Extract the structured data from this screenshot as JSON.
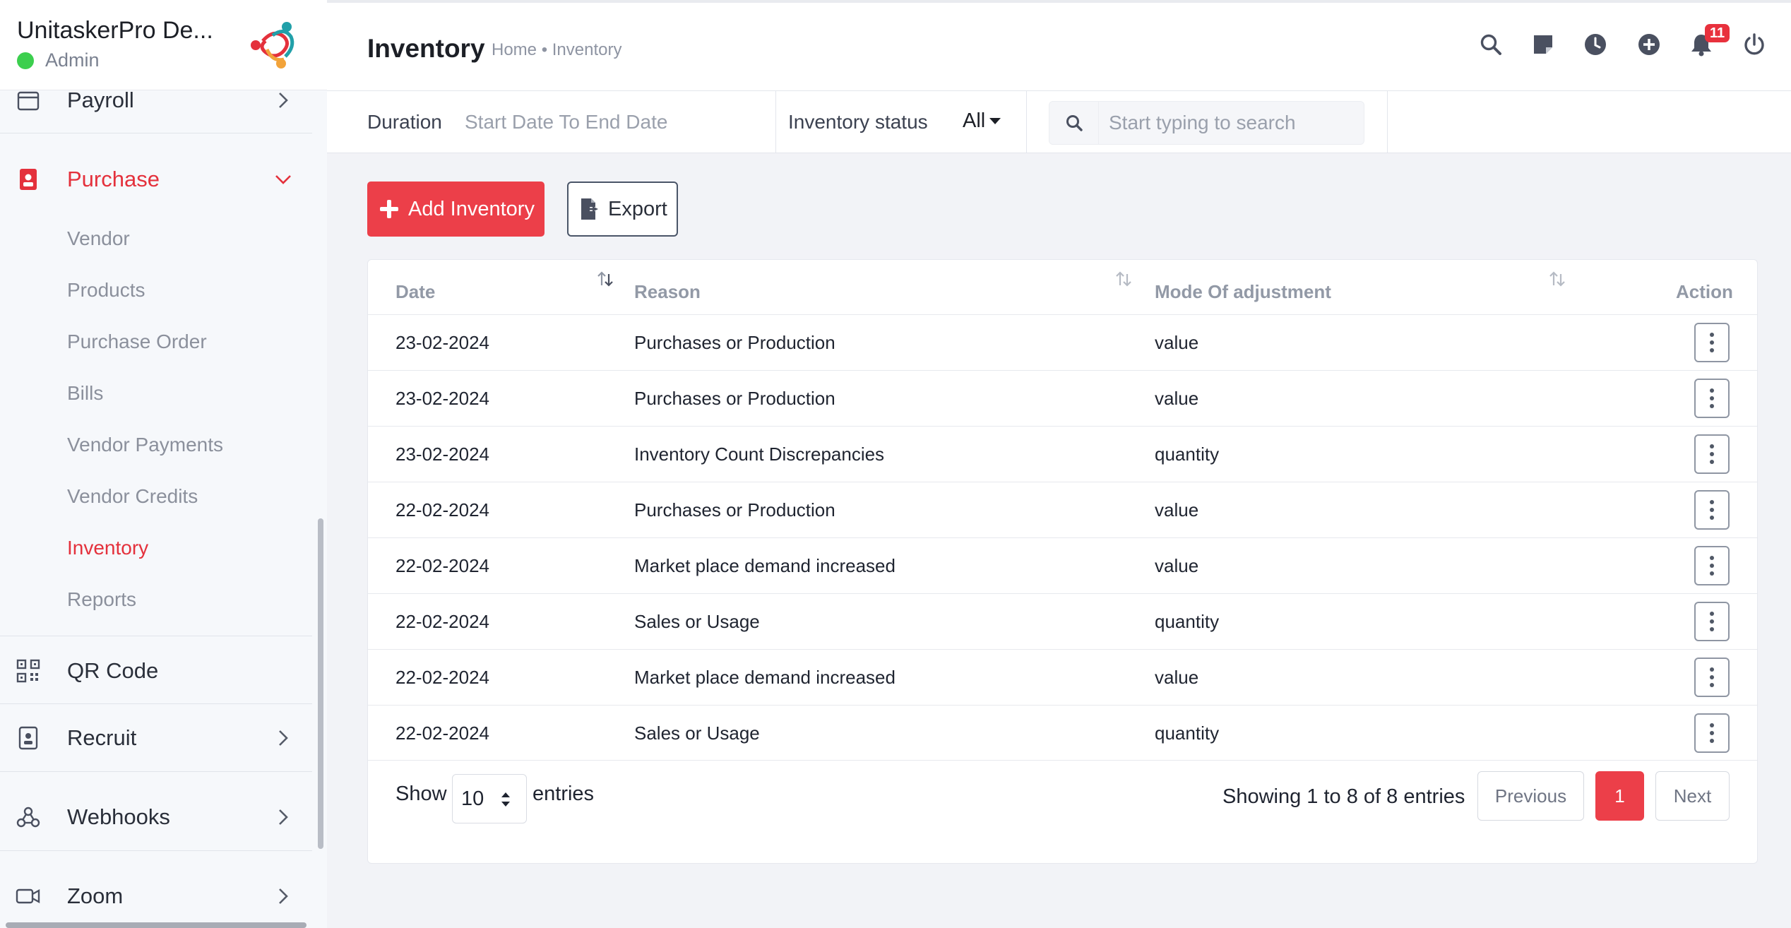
{
  "app": {
    "brand_name": "UnitaskerPro De...",
    "role": "Admin"
  },
  "sidebar": {
    "items": [
      {
        "label": "Payroll",
        "icon": "calendar-icon"
      },
      {
        "label": "Purchase",
        "icon": "badge-icon"
      },
      {
        "label": "QR Code",
        "icon": "qr-code-icon"
      },
      {
        "label": "Recruit",
        "icon": "badge-icon"
      },
      {
        "label": "Webhooks",
        "icon": "webhook-icon"
      },
      {
        "label": "Zoom",
        "icon": "video-camera-icon"
      }
    ],
    "purchase_sub": [
      "Vendor",
      "Products",
      "Purchase Order",
      "Bills",
      "Vendor Payments",
      "Vendor Credits",
      "Inventory",
      "Reports"
    ],
    "active_sub": "Inventory"
  },
  "header": {
    "title": "Inventory",
    "breadcrumb": "Home • Inventory",
    "notification_count": "11"
  },
  "filters": {
    "duration_label": "Duration",
    "duration_placeholder": "Start Date To End Date",
    "status_label": "Inventory status",
    "status_value": "All",
    "search_placeholder": "Start typing to search"
  },
  "actions": {
    "add_label": "Add Inventory",
    "export_label": "Export"
  },
  "table": {
    "columns": [
      "Date",
      "Reason",
      "Mode Of adjustment",
      "Action"
    ],
    "rows": [
      {
        "date": "23-02-2024",
        "reason": "Purchases or Production",
        "mode": "value"
      },
      {
        "date": "23-02-2024",
        "reason": "Purchases or Production",
        "mode": "value"
      },
      {
        "date": "23-02-2024",
        "reason": "Inventory Count Discrepancies",
        "mode": "quantity"
      },
      {
        "date": "22-02-2024",
        "reason": "Purchases or Production",
        "mode": "value"
      },
      {
        "date": "22-02-2024",
        "reason": "Market place demand increased",
        "mode": "value"
      },
      {
        "date": "22-02-2024",
        "reason": "Sales or Usage",
        "mode": "quantity"
      },
      {
        "date": "22-02-2024",
        "reason": "Market place demand increased",
        "mode": "value"
      },
      {
        "date": "22-02-2024",
        "reason": "Sales or Usage",
        "mode": "quantity"
      }
    ]
  },
  "pagination": {
    "show_label": "Show",
    "entries_value": "10",
    "entries_label": "entries",
    "summary": "Showing 1 to 8 of 8 entries",
    "previous": "Previous",
    "current_page": "1",
    "next": "Next"
  },
  "colors": {
    "accent": "#ec3f49",
    "active_text": "#e4313c",
    "online": "#3ccf4e"
  }
}
